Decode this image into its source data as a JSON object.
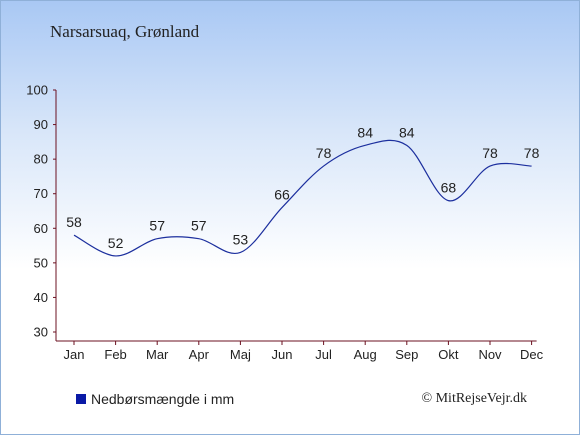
{
  "colors": {
    "line": "#1c2f9e",
    "legend_swatch": "#0a1aa6",
    "axis": "#6b1020"
  },
  "header": {
    "title": "Narsarsuaq, Grønland"
  },
  "legend": {
    "label": "Nedbørsmængde i mm"
  },
  "footer": {
    "credit": "© MitRejseVejr.dk"
  },
  "chart_data": {
    "type": "line",
    "title": "Narsarsuaq, Grønland",
    "xlabel": "",
    "ylabel": "",
    "categories": [
      "Jan",
      "Feb",
      "Mar",
      "Apr",
      "Maj",
      "Jun",
      "Jul",
      "Aug",
      "Sep",
      "Okt",
      "Nov",
      "Dec"
    ],
    "series": [
      {
        "name": "Nedbørsmængde i mm",
        "values": [
          58,
          52,
          57,
          57,
          53,
          66,
          78,
          84,
          84,
          68,
          78,
          78
        ]
      }
    ],
    "ylim": [
      30,
      100
    ],
    "yticks": [
      30,
      40,
      50,
      60,
      70,
      80,
      90,
      100
    ],
    "grid": false,
    "legend_position": "bottom-left"
  }
}
